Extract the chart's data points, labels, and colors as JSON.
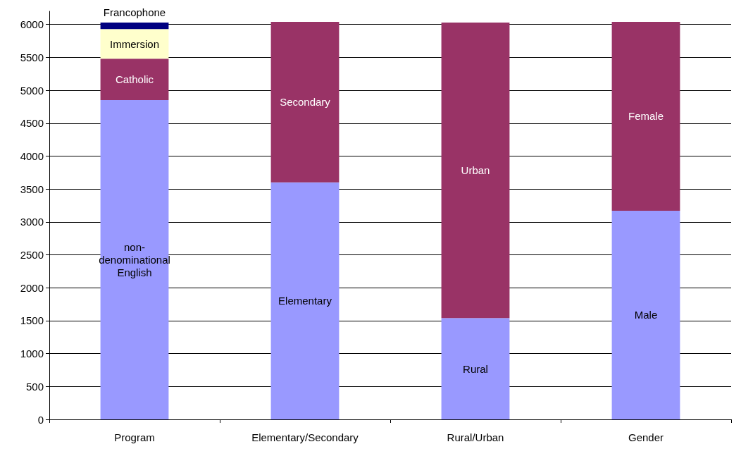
{
  "chart_data": {
    "type": "bar",
    "stacked": true,
    "categories": [
      "Program",
      "Elementary/Secondary",
      "Rural/Urban",
      "Gender"
    ],
    "series": [
      {
        "color": "#9999ff",
        "values": [
          4850,
          3600,
          1540,
          3170
        ],
        "value_labels": [
          "non-denominational English",
          "Elementary",
          "Rural",
          "Male"
        ]
      },
      {
        "color": "#993366",
        "values": [
          630,
          2440,
          4490,
          2870
        ],
        "value_labels": [
          "Catholic",
          "Secondary",
          "Urban",
          "Female"
        ]
      },
      {
        "color": "#ffffcc",
        "values": [
          450,
          null,
          null,
          null
        ],
        "value_labels": [
          "Immersion",
          null,
          null,
          null
        ]
      },
      {
        "color": "#000080",
        "values": [
          100,
          null,
          null,
          null
        ],
        "value_labels": [
          "Francophone",
          null,
          null,
          null
        ]
      }
    ],
    "ylim": [
      0,
      6200
    ],
    "yticks": [
      0,
      500,
      1000,
      1500,
      2000,
      2500,
      3000,
      3500,
      4000,
      4500,
      5000,
      5500,
      6000
    ],
    "grid": "y"
  }
}
